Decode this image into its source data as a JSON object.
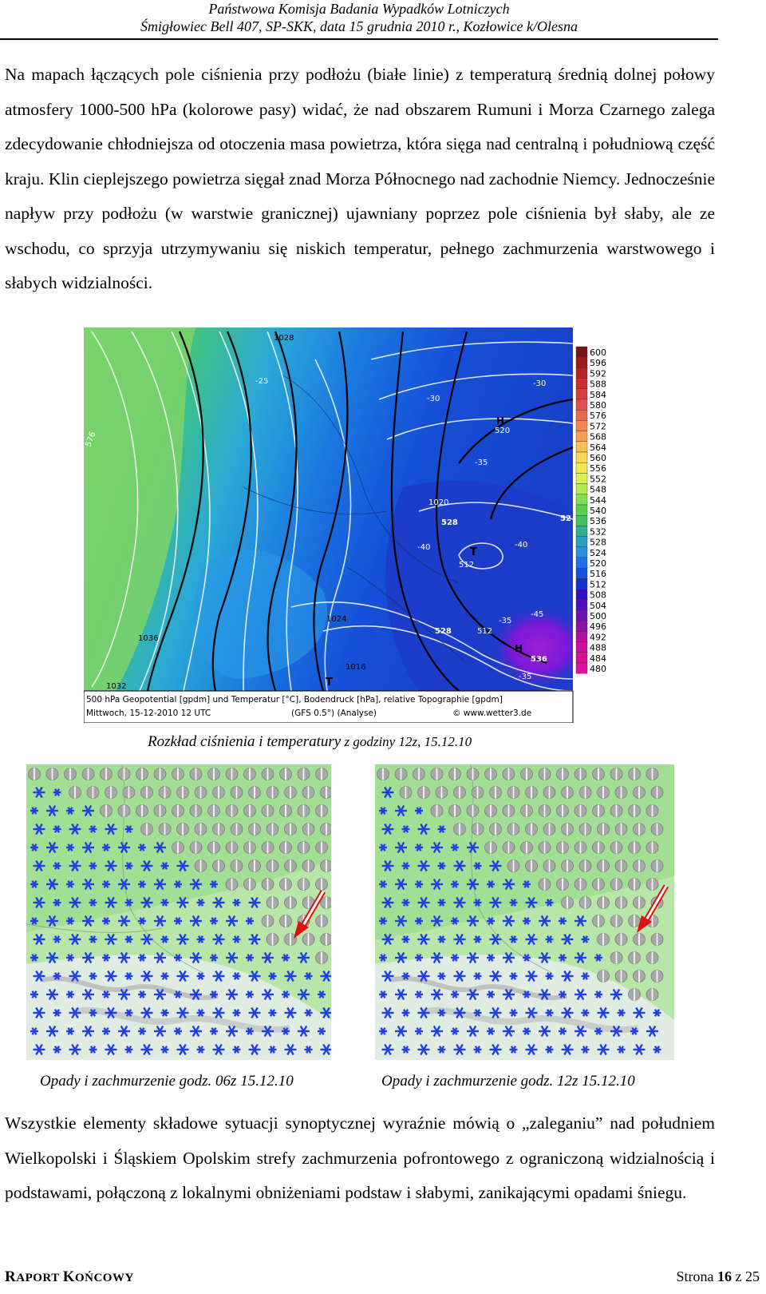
{
  "header": {
    "line1": "Państwowa Komisja Badania Wypadków Lotniczych",
    "line2": "Śmigłowiec Bell 407, SP-SKK, data 15 grudnia 2010 r., Kozłowice k/Olesna"
  },
  "paragraph1": "Na mapach łączących pole ciśnienia przy podłożu (białe linie) z temperaturą średnią dolnej połowy atmosfery 1000-500 hPa (kolorowe pasy) widać, że nad obszarem Rumuni i Morza Czarnego zalega zdecydowanie chłodniejsza od otoczenia masa powietrza, która sięga nad centralną i południową część kraju. Klin cieplejszego powietrza sięgał znad Morza Północnego nad zachodnie Niemcy. Jednocześnie napływ przy podłożu (w warstwie granicznej) ujawniany poprzez pole ciśnienia był słaby, ale ze wschodu, co sprzyja utrzymywaniu się niskich temperatur, pełnego zachmurzenia warstwowego i słabych widzialności.",
  "figure1": {
    "legend_values": [
      "600",
      "596",
      "592",
      "588",
      "584",
      "580",
      "576",
      "572",
      "568",
      "564",
      "560",
      "556",
      "552",
      "548",
      "544",
      "540",
      "536",
      "532",
      "528",
      "524",
      "520",
      "516",
      "512",
      "508",
      "504",
      "500",
      "496",
      "492",
      "488",
      "484",
      "480"
    ],
    "legend_colors": [
      "#7a1414",
      "#9a1c1c",
      "#b22424",
      "#c83030",
      "#d84040",
      "#e05050",
      "#e86a50",
      "#f08850",
      "#f5a050",
      "#f8c050",
      "#f8d850",
      "#f0e850",
      "#d8f050",
      "#b0ec50",
      "#80e050",
      "#58d048",
      "#40c060",
      "#30b090",
      "#28a0c0",
      "#2890e0",
      "#2070f0",
      "#1850e0",
      "#1830d0",
      "#3010c0",
      "#5010b8",
      "#7010b0",
      "#9010a8",
      "#b010a0",
      "#c81098",
      "#d81090",
      "#e010a0"
    ],
    "map_labels": {
      "l1028": "1028",
      "lm25": "-25",
      "lm30a": "-30",
      "lm30b": "-30",
      "lm35a": "-35",
      "lm35b": "-35",
      "lm35c": "-35",
      "l1020": "1020",
      "l528a": "528",
      "lm40a": "-40",
      "lm40b": "-40",
      "lm45": "-45",
      "lT1": "T",
      "lT2": "T",
      "lH1": "H",
      "lH2": "H",
      "l536": "536",
      "l1036": "1036",
      "l1032": "1032",
      "l1024": "1024",
      "l1016": "1016",
      "l520": "520",
      "l512": "512",
      "l512b": "512",
      "l528b": "528",
      "l576": "576",
      "l52": "52"
    },
    "bottom_line1": "500 hPa Geopotential [gpdm] und Temperatur [°C], Bodendruck [hPa], relative Topographie [gpdm]",
    "bottom_line2a": "Mittwoch, 15-12-2010  12 UTC",
    "bottom_line2b": "(GFS 0.5°)  (Analyse)",
    "bottom_line2c": "© www.wetter3.de"
  },
  "caption1": {
    "part1": "Rozkład ciśnienia  i temperatury",
    "part2": " z godziny 12z, 15.12.10"
  },
  "caption2": "Opady i zachmurzenie godz. 06z 15.12.10",
  "caption3": "Opady i zachmurzenie godz. 12z 15.12.10",
  "paragraph2": "Wszystkie elementy składowe sytuacji synoptycznej wyraźnie mówią o „zaleganiu” nad południem Wielkopolski i Śląskiem Opolskim strefy zachmurzenia pofrontowego z ograniczoną widzialnością i podstawami, połączoną z lokalnymi obniżeniami podstaw i słabymi, zanikającymi opadami śniegu.",
  "footer": {
    "left_cap1": "R",
    "left_rest1": "APORT ",
    "left_cap2": "K",
    "left_rest2": "OŃCOWY",
    "page_prefix": "Strona ",
    "page_num": "16",
    "page_suffix": " z 25"
  }
}
